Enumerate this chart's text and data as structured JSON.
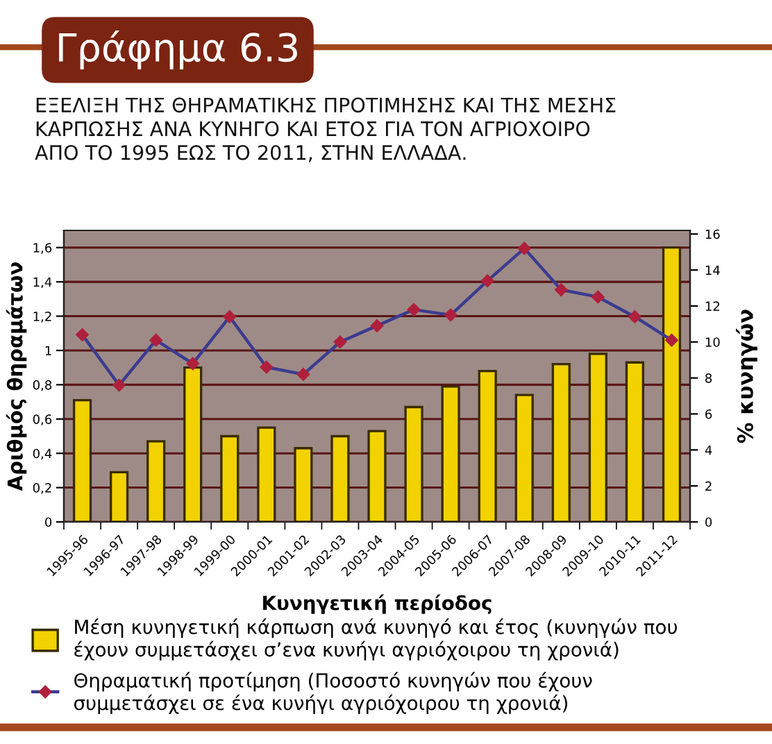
{
  "chart_data": {
    "type": "bar",
    "title": "Γράφημα 6.3",
    "subtitle": "ΕΞΕΛΙΞΗ ΤΗΣ ΘΗΡΑΜΑΤΙΚΗΣ ΠΡΟΤΙΜΗΣΗΣ ΚΑΙ ΤΗΣ ΜΕΣΗΣ\nΚΑΡΠΩΣΗΣ ΑΝΑ ΚΥΝΗΓΟ ΚΑΙ ΕΤΟΣ ΓΙΑ ΤΟΝ ΑΓΡΙΟΧΟΙΡΟ\nΑΠΟ ΤΟ 1995 ΕΩΣ ΤΟ 2011, ΣΤΗΝ ΕΛΛΑΔΑ.",
    "xlabel": "Κυνηγετική περίοδος",
    "ylabel": "Αριθμός θηραμάτων",
    "y2label": "% κυνηγών",
    "categories": [
      "1995-96",
      "1996-97",
      "1997-98",
      "1998-99",
      "1999-00",
      "2000-01",
      "2001-02",
      "2002-03",
      "2003-04",
      "2004-05",
      "2005-06",
      "2006-07",
      "2007-08",
      "2008-09",
      "2009-10",
      "2010-11",
      "2011-12"
    ],
    "series": [
      {
        "name": "Μέση κυνηγετική κάρπωση ανά κυνηγό και έτος (κυνηγών που\nέχουν συμμετάσχει σ’ενα κυνήγι αγριόχοιρου τη χρονιά)",
        "color": "#f2d200",
        "values": [
          0.71,
          0.29,
          0.47,
          0.9,
          0.5,
          0.55,
          0.43,
          0.5,
          0.53,
          0.67,
          0.79,
          0.88,
          0.74,
          0.92,
          0.98,
          0.93,
          1.6
        ]
      },
      {
        "name": "Θηραματική προτίμηση (Ποσοστό κυνηγών που έχουν\nσυμμετάσχει σε ένα κυνήγι αγριόχοιρου τη χρονιά)",
        "type": "line",
        "axis": "y2",
        "color": "#3b3b8f",
        "marker": "diamond",
        "line_style": "solid",
        "values": [
          10.4,
          7.6,
          10.1,
          8.8,
          11.4,
          8.6,
          8.2,
          10.0,
          10.9,
          11.8,
          11.5,
          13.4,
          15.2,
          12.9,
          12.5,
          11.4,
          10.1
        ]
      }
    ],
    "ylim": [
      0,
      1.7
    ],
    "yticks": [
      0,
      {
        "value": 0.2,
        "label": "0,2"
      },
      {
        "value": 0.4,
        "label": "0,4"
      },
      {
        "value": 0.6,
        "label": "0,6"
      },
      {
        "value": 0.8,
        "label": "0,8"
      },
      1,
      {
        "value": 1.2,
        "label": "1,2"
      },
      {
        "value": 1.4,
        "label": "1,4"
      },
      {
        "value": 1.6,
        "label": "1,6"
      }
    ],
    "y2lim": [
      0,
      16.2
    ],
    "y2ticks": [
      0,
      2,
      4,
      6,
      8,
      10,
      12,
      14,
      16
    ],
    "grid": "y",
    "legend": "bottom"
  }
}
